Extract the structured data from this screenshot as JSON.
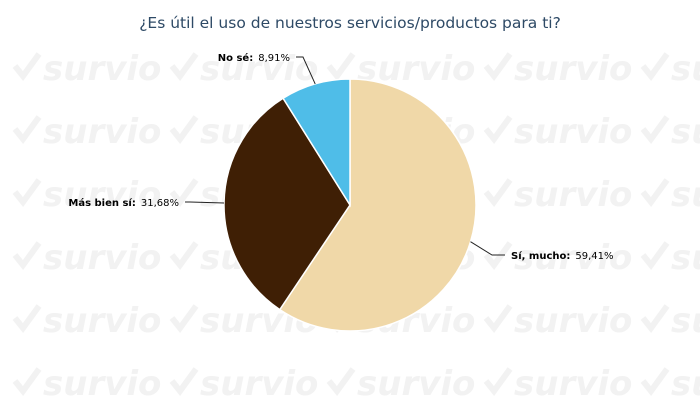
{
  "watermark_text": "survio",
  "chart_data": {
    "type": "pie",
    "title": "¿Es útil el uso de nuestros servicios/productos para ti?",
    "slices": [
      {
        "label": "Sí, mucho:",
        "value_text": "59,41%",
        "value": 59.41,
        "color": "#f0d8a8"
      },
      {
        "label": "Más bien sí:",
        "value_text": "31,68%",
        "value": 31.68,
        "color": "#3f1f05"
      },
      {
        "label": "No sé:",
        "value_text": "8,91%",
        "value": 8.91,
        "color": "#4fbde8"
      }
    ],
    "start_angle_deg": 0,
    "direction": "clockwise",
    "legend": "none"
  }
}
